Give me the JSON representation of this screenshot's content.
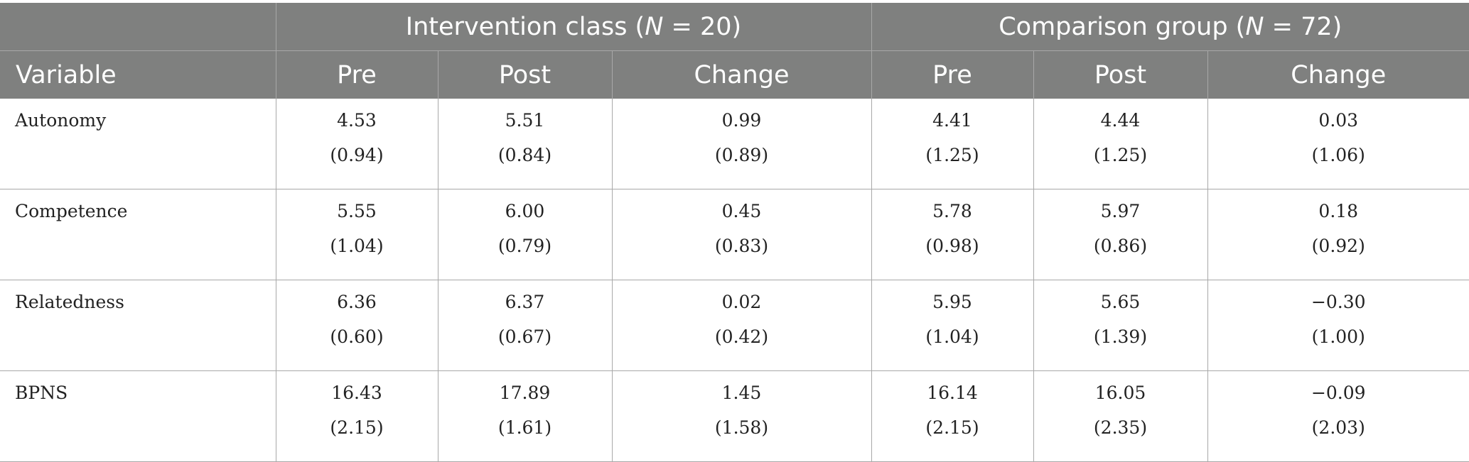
{
  "table": {
    "group_headers": [
      {
        "label_before": "Intervention class (",
        "n_label": "N",
        "label_after": " = 20)"
      },
      {
        "label_before": "Comparison group (",
        "n_label": "N",
        "label_after": " = 72)"
      }
    ],
    "column_headers": [
      "Variable",
      "Pre",
      "Post",
      "Change",
      "Pre",
      "Post",
      "Change"
    ],
    "rows": [
      {
        "variable": "Autonomy",
        "cells": [
          {
            "mean": "4.53",
            "sd": "(0.94)"
          },
          {
            "mean": "5.51",
            "sd": "(0.84)"
          },
          {
            "mean": "0.99",
            "sd": "(0.89)"
          },
          {
            "mean": "4.41",
            "sd": "(1.25)"
          },
          {
            "mean": "4.44",
            "sd": "(1.25)"
          },
          {
            "mean": "0.03",
            "sd": "(1.06)"
          }
        ]
      },
      {
        "variable": "Competence",
        "cells": [
          {
            "mean": "5.55",
            "sd": "(1.04)"
          },
          {
            "mean": "6.00",
            "sd": "(0.79)"
          },
          {
            "mean": "0.45",
            "sd": "(0.83)"
          },
          {
            "mean": "5.78",
            "sd": "(0.98)"
          },
          {
            "mean": "5.97",
            "sd": "(0.86)"
          },
          {
            "mean": "0.18",
            "sd": "(0.92)"
          }
        ]
      },
      {
        "variable": "Relatedness",
        "cells": [
          {
            "mean": "6.36",
            "sd": "(0.60)"
          },
          {
            "mean": "6.37",
            "sd": "(0.67)"
          },
          {
            "mean": "0.02",
            "sd": "(0.42)"
          },
          {
            "mean": "5.95",
            "sd": "(1.04)"
          },
          {
            "mean": "5.65",
            "sd": "(1.39)"
          },
          {
            "mean": "−0.30",
            "sd": "(1.00)"
          }
        ]
      },
      {
        "variable": "BPNS",
        "cells": [
          {
            "mean": "16.43",
            "sd": "(2.15)"
          },
          {
            "mean": "17.89",
            "sd": "(1.61)"
          },
          {
            "mean": "1.45",
            "sd": "(1.58)"
          },
          {
            "mean": "16.14",
            "sd": "(2.15)"
          },
          {
            "mean": "16.05",
            "sd": "(2.35)"
          },
          {
            "mean": "−0.09",
            "sd": "(2.03)"
          }
        ]
      }
    ],
    "colors": {
      "header_bg": "#7f807f",
      "header_text": "#ffffff",
      "grid_line": "#a8a8a8",
      "body_text": "#222222"
    }
  }
}
